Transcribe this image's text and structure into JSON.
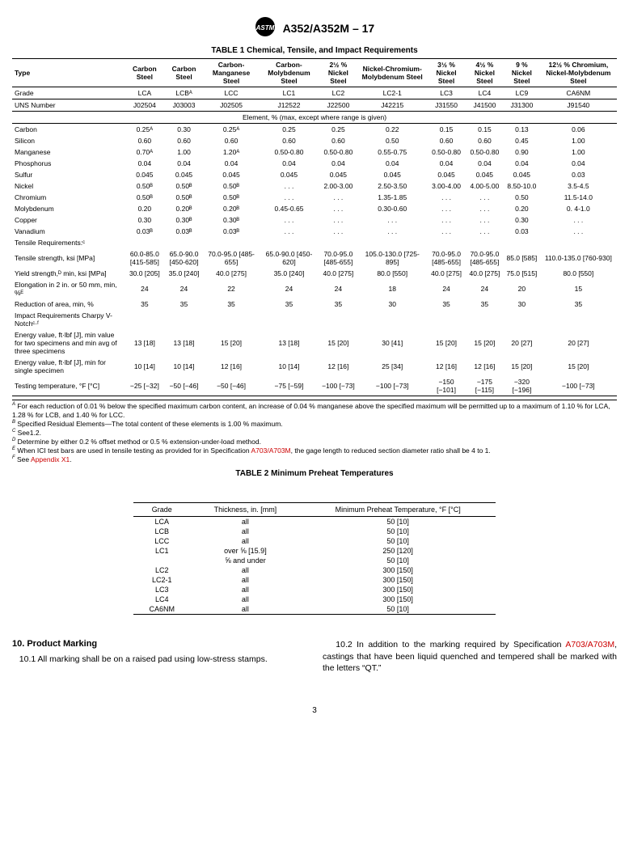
{
  "header": {
    "designation": "A352/A352M – 17"
  },
  "table1": {
    "title": "TABLE 1 Chemical, Tensile, and Impact Requirements",
    "row_type_label": "Type",
    "types": [
      "Carbon Steel",
      "Carbon Steel",
      "Carbon-Manganese Steel",
      "Carbon-Molybdenum Steel",
      "2½ % Nickel Steel",
      "Nickel-Chromium-Molybdenum Steel",
      "3½ % Nickel Steel",
      "4½ % Nickel Steel",
      "9 % Nickel Steel",
      "12½ % Chromium, Nickel-Molybdenum Steel"
    ],
    "grade_label": "Grade",
    "grades": [
      "LCA",
      "LCBᴬ",
      "LCC",
      "LC1",
      "LC2",
      "LC2-1",
      "LC3",
      "LC4",
      "LC9",
      "CA6NM"
    ],
    "uns_label": "UNS Number",
    "uns": [
      "J02504",
      "J03003",
      "J02505",
      "J12522",
      "J22500",
      "J42215",
      "J31550",
      "J41500",
      "J31300",
      "J91540"
    ],
    "elem_header": "Element, % (max, except where range is given)",
    "rows": [
      {
        "label": "Carbon",
        "v": [
          "0.25ᴬ",
          "0.30",
          "0.25ᴬ",
          "0.25",
          "0.25",
          "0.22",
          "0.15",
          "0.15",
          "0.13",
          "0.06"
        ]
      },
      {
        "label": "Silicon",
        "v": [
          "0.60",
          "0.60",
          "0.60",
          "0.60",
          "0.60",
          "0.50",
          "0.60",
          "0.60",
          "0.45",
          "1.00"
        ]
      },
      {
        "label": "Manganese",
        "v": [
          "0.70ᴬ",
          "1.00",
          "1.20ᴬ",
          "0.50-0.80",
          "0.50-0.80",
          "0.55-0.75",
          "0.50-0.80",
          "0.50-0.80",
          "0.90",
          "1.00"
        ]
      },
      {
        "label": "Phosphorus",
        "v": [
          "0.04",
          "0.04",
          "0.04",
          "0.04",
          "0.04",
          "0.04",
          "0.04",
          "0.04",
          "0.04",
          "0.04"
        ]
      },
      {
        "label": "Sulfur",
        "v": [
          "0.045",
          "0.045",
          "0.045",
          "0.045",
          "0.045",
          "0.045",
          "0.045",
          "0.045",
          "0.045",
          "0.03"
        ]
      },
      {
        "label": "Nickel",
        "v": [
          "0.50ᴮ",
          "0.50ᴮ",
          "0.50ᴮ",
          ". . .",
          "2.00-3.00",
          "2.50-3.50",
          "3.00-4.00",
          "4.00-5.00",
          "8.50-10.0",
          "3.5-4.5"
        ]
      },
      {
        "label": "Chromium",
        "v": [
          "0.50ᴮ",
          "0.50ᴮ",
          "0.50ᴮ",
          ". . .",
          ". . .",
          "1.35-1.85",
          ". . .",
          ". . .",
          "0.50",
          "11.5-14.0"
        ]
      },
      {
        "label": "Molybdenum",
        "v": [
          "0.20",
          "0.20ᴮ",
          "0.20ᴮ",
          "0.45-0.65",
          ". . .",
          "0.30-0.60",
          ". . .",
          ". . .",
          "0.20",
          "0. 4-1.0"
        ]
      },
      {
        "label": "Copper",
        "v": [
          "0.30",
          "0.30ᴮ",
          "0.30ᴮ",
          ". . .",
          ". . .",
          ". . .",
          ". . .",
          ". . .",
          "0.30",
          ". . ."
        ]
      },
      {
        "label": "Vanadium",
        "v": [
          "0.03ᴮ",
          "0.03ᴮ",
          "0.03ᴮ",
          ". . .",
          ". . .",
          ". . .",
          ". . .",
          ". . .",
          "0.03",
          ". . ."
        ]
      },
      {
        "label": "Tensile Requirements:ᶜ",
        "v": [
          "",
          "",
          "",
          "",
          "",
          "",
          "",
          "",
          "",
          ""
        ]
      },
      {
        "label": "Tensile strength, ksi [MPa]",
        "v": [
          "60.0-85.0 [415-585]",
          "65.0-90.0 [450-620]",
          "70.0-95.0 [485-655]",
          "65.0-90.0 [450-620]",
          "70.0-95.0 [485-655]",
          "105.0-130.0 [725-895]",
          "70.0-95.0 [485-655]",
          "70.0-95.0 [485-655]",
          "85.0 [585]",
          "110.0-135.0 [760-930]"
        ]
      },
      {
        "label": "Yield strength,ᴰ min, ksi [MPa]",
        "v": [
          "30.0 [205]",
          "35.0 [240]",
          "40.0 [275]",
          "35.0 [240]",
          "40.0 [275]",
          "80.0 [550]",
          "40.0 [275]",
          "40.0 [275]",
          "75.0 [515]",
          "80.0 [550]"
        ]
      },
      {
        "label": "Elongation in 2 in. or 50 mm, min, %ᴱ",
        "v": [
          "24",
          "24",
          "22",
          "24",
          "24",
          "18",
          "24",
          "24",
          "20",
          "15"
        ]
      },
      {
        "label": "Reduction of area, min, %",
        "v": [
          "35",
          "35",
          "35",
          "35",
          "35",
          "30",
          "35",
          "35",
          "30",
          "35"
        ]
      },
      {
        "label": "Impact Requirements Charpy V-Notchᶜ·ᶠ",
        "v": [
          "",
          "",
          "",
          "",
          "",
          "",
          "",
          "",
          "",
          ""
        ]
      },
      {
        "label": "Energy value, ft·lbf [J], min value for two specimens and min avg of three specimens",
        "v": [
          "13 [18]",
          "13 [18]",
          "15 [20]",
          "13 [18]",
          "15 [20]",
          "30 [41]",
          "15 [20]",
          "15 [20]",
          "20 [27]",
          "20 [27]"
        ]
      },
      {
        "label": "Energy value, ft·lbf [J], min for single specimen",
        "v": [
          "10 [14]",
          "10 [14]",
          "12 [16]",
          "10 [14]",
          "12 [16]",
          "25 [34]",
          "12 [16]",
          "12 [16]",
          "15 [20]",
          "15 [20]"
        ]
      },
      {
        "label": "Testing temperature, °F [°C]",
        "v": [
          "−25 [−32]",
          "−50 [−46]",
          "−50 [−46]",
          "−75 [−59]",
          "−100 [−73]",
          "−100 [−73]",
          "−150 [−101]",
          "−175 [−115]",
          "−320 [−196]",
          "−100 [−73]"
        ]
      }
    ],
    "footnotes": [
      {
        "sup": "A",
        "text": "For each reduction of 0.01 % below the specified maximum carbon content, an increase of 0.04 % manganese above the specified maximum will be permitted up to a maximum of 1.10 % for LCA, 1.28 % for LCB, and 1.40 % for LCC."
      },
      {
        "sup": "B",
        "text": "Specified Residual Elements—The total content of these elements is 1.00 % maximum."
      },
      {
        "sup": "C",
        "text": "See1.2."
      },
      {
        "sup": "D",
        "text": "Determine by either 0.2 % offset method or 0.5 % extension-under-load method."
      },
      {
        "sup": "E",
        "text": "When ICI test bars are used in tensile testing as provided for in Specification A703/A703M, the gage length to reduced section diameter ratio shall be 4 to 1.",
        "link": "A703/A703M"
      },
      {
        "sup": "F",
        "text": "See Appendix X1.",
        "link": "Appendix X1"
      }
    ]
  },
  "table2": {
    "title": "TABLE 2 Minimum Preheat Temperatures",
    "headers": [
      "Grade",
      "Thickness, in. [mm]",
      "Minimum Preheat Temperature, °F [°C]"
    ],
    "rows": [
      [
        "LCA",
        "all",
        "50 [10]"
      ],
      [
        "LCB",
        "all",
        "50 [10]"
      ],
      [
        "LCC",
        "all",
        "50 [10]"
      ],
      [
        "LC1",
        "over ⅝ [15.9]",
        "250 [120]"
      ],
      [
        "",
        "⅝ and under",
        "50 [10]"
      ],
      [
        "LC2",
        "all",
        "300 [150]"
      ],
      [
        "LC2-1",
        "all",
        "300 [150]"
      ],
      [
        "LC3",
        "all",
        "300 [150]"
      ],
      [
        "LC4",
        "all",
        "300 [150]"
      ],
      [
        "CA6NM",
        "all",
        "50 [10]"
      ]
    ]
  },
  "body": {
    "section_title": "10.  Product Marking",
    "p1": "10.1 All marking shall be on a raised pad using low-stress stamps.",
    "p2a": "10.2 In addition to the marking required by Specification ",
    "p2link": "A703/A703M",
    "p2b": ", castings that have been liquid quenched and tempered shall be marked with the letters “QT.”"
  },
  "page": "3"
}
